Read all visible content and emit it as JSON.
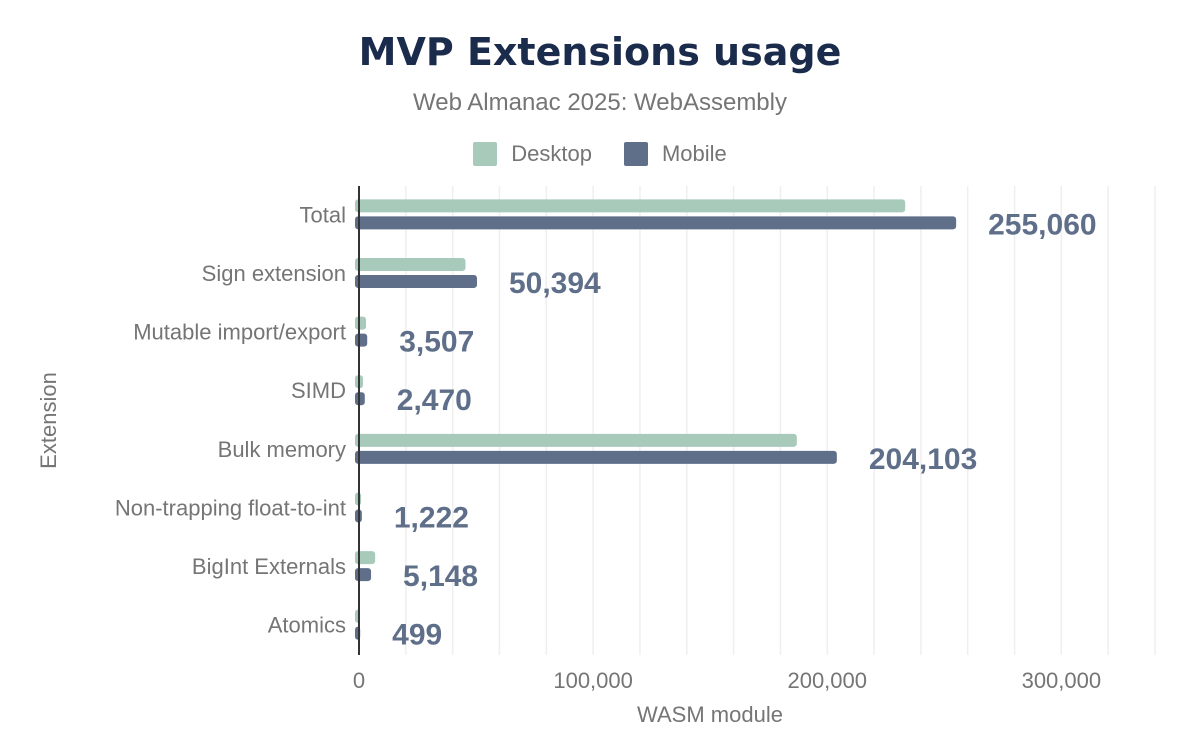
{
  "chart_data": {
    "type": "bar",
    "orientation": "horizontal",
    "title": "MVP Extensions usage",
    "subtitle": "Web Almanac 2025: WebAssembly",
    "xlabel": "WASM module",
    "ylabel": "Extension",
    "xlim": [
      0,
      340000
    ],
    "xticks": [
      0,
      100000,
      200000,
      300000
    ],
    "xtick_labels": [
      "0",
      "100,000",
      "200,000",
      "300,000"
    ],
    "grid": true,
    "legend_position": "top",
    "categories": [
      "Total",
      "Sign extension",
      "Mutable import/export",
      "SIMD",
      "Bulk memory",
      "Non-trapping float-to-int",
      "BigInt Externals",
      "Atomics"
    ],
    "series": [
      {
        "name": "Desktop",
        "color": "#a8cabb",
        "values": [
          233300,
          45500,
          3000,
          1700,
          187000,
          900,
          6900,
          400
        ]
      },
      {
        "name": "Mobile",
        "color": "#5f6f8a",
        "values": [
          255060,
          50394,
          3507,
          2470,
          204103,
          1222,
          5148,
          499
        ],
        "data_labels": [
          "255,060",
          "50,394",
          "3,507",
          "2,470",
          "204,103",
          "1,222",
          "5,148",
          "499"
        ]
      }
    ]
  }
}
